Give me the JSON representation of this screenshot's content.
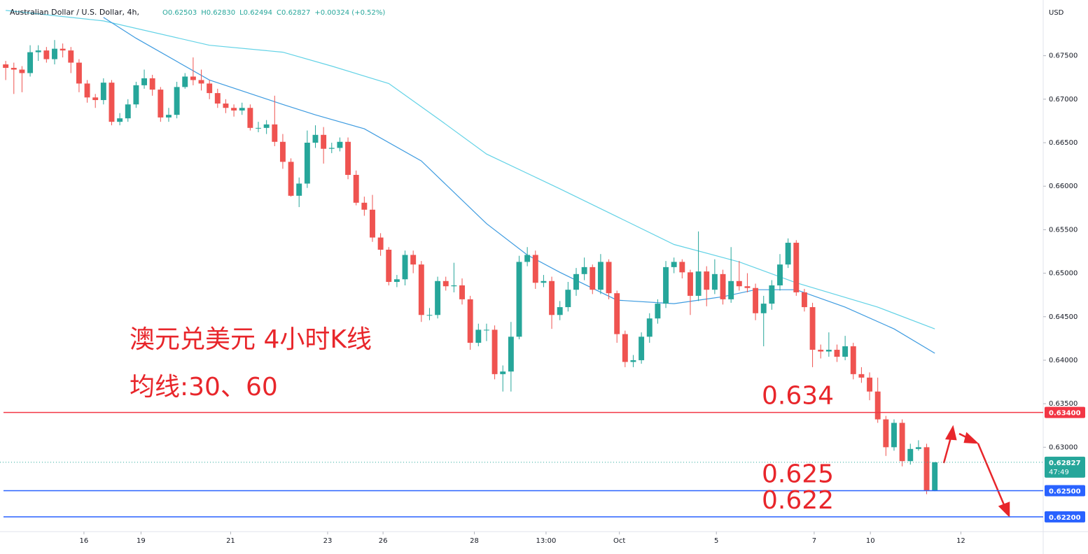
{
  "chart_data": {
    "type": "candlestick",
    "title": "Australian Dollar / U.S. Dollar, 4h,",
    "ohlc": [
      "O0.62503",
      "H0.62830",
      "L0.62494",
      "C0.62827"
    ],
    "change": "+0.00324 (+0.52%)",
    "y_unit": "USD",
    "annotations": [
      "澳元兑美元 4小时K线",
      "均线:30、60"
    ],
    "up_color": "#26a69a",
    "down_color": "#ef5350",
    "open": [
      0.674,
      0.6736,
      0.6734,
      0.673,
      0.6754,
      0.6756,
      0.6746,
      0.6758,
      0.6756,
      0.6742,
      0.6718,
      0.6702,
      0.6699,
      0.6719,
      0.6674,
      0.6678,
      0.6694,
      0.6716,
      0.6724,
      0.6711,
      0.6679,
      0.6682,
      0.6714,
      0.6726,
      0.6722,
      0.6718,
      0.6707,
      0.6695,
      0.669,
      0.6687,
      0.669,
      0.6667,
      0.6667,
      0.6671,
      0.6651,
      0.6628,
      0.6589,
      0.6603,
      0.665,
      0.6659,
      0.6643,
      0.6644,
      0.6651,
      0.6613,
      0.6581,
      0.6573,
      0.6541,
      0.6527,
      0.649,
      0.6493,
      0.6521,
      0.651,
      0.6452,
      0.6452,
      0.6491,
      0.6485,
      0.6486,
      0.647,
      0.642,
      0.6435,
      0.6435,
      0.6384,
      0.6387,
      0.6427,
      0.6513,
      0.6521,
      0.6489,
      0.6491,
      0.6452,
      0.6461,
      0.6481,
      0.6499,
      0.6507,
      0.6481,
      0.6513,
      0.6477,
      0.643,
      0.6398,
      0.64,
      0.6427,
      0.6448,
      0.6465,
      0.6507,
      0.6513,
      0.6501,
      0.6474,
      0.6502,
      0.6481,
      0.6499,
      0.647,
      0.6491,
      0.6485,
      0.6483,
      0.6454,
      0.6465,
      0.6486,
      0.651,
      0.6535,
      0.6478,
      0.6461,
      0.6412,
      0.641,
      0.6412,
      0.6404,
      0.6416,
      0.6384,
      0.638,
      0.6364,
      0.6332,
      0.63,
      0.6328,
      0.6284,
      0.6298,
      0.63,
      0.62503
    ],
    "high": [
      0.6744,
      0.6742,
      0.6738,
      0.6762,
      0.6762,
      0.676,
      0.6768,
      0.6764,
      0.676,
      0.6746,
      0.6722,
      0.6706,
      0.6724,
      0.6722,
      0.6684,
      0.67,
      0.672,
      0.6734,
      0.6728,
      0.6714,
      0.669,
      0.672,
      0.673,
      0.6748,
      0.6734,
      0.6722,
      0.6712,
      0.67,
      0.6694,
      0.6696,
      0.6694,
      0.6674,
      0.6676,
      0.6704,
      0.666,
      0.6632,
      0.661,
      0.6664,
      0.667,
      0.6668,
      0.665,
      0.6656,
      0.6656,
      0.6618,
      0.6588,
      0.659,
      0.6546,
      0.653,
      0.6498,
      0.6526,
      0.6526,
      0.6514,
      0.646,
      0.6496,
      0.6496,
      0.6512,
      0.6494,
      0.6474,
      0.6442,
      0.6442,
      0.644,
      0.6394,
      0.6444,
      0.652,
      0.653,
      0.6526,
      0.6498,
      0.6496,
      0.6468,
      0.649,
      0.6506,
      0.6518,
      0.651,
      0.6522,
      0.6516,
      0.648,
      0.6434,
      0.6406,
      0.6432,
      0.6454,
      0.647,
      0.6514,
      0.6518,
      0.6516,
      0.6504,
      0.6548,
      0.6508,
      0.6516,
      0.6504,
      0.653,
      0.6514,
      0.65,
      0.6488,
      0.6474,
      0.6492,
      0.6522,
      0.654,
      0.6538,
      0.6482,
      0.6466,
      0.6418,
      0.6432,
      0.6418,
      0.6428,
      0.642,
      0.6392,
      0.6386,
      0.638,
      0.6336,
      0.6332,
      0.6332,
      0.6304,
      0.6308,
      0.6304,
      0.6283
    ],
    "low": [
      0.6722,
      0.6706,
      0.6708,
      0.6726,
      0.6744,
      0.6742,
      0.674,
      0.6748,
      0.673,
      0.6708,
      0.6696,
      0.669,
      0.6694,
      0.667,
      0.667,
      0.6674,
      0.669,
      0.6712,
      0.6704,
      0.6674,
      0.6674,
      0.6678,
      0.6712,
      0.6716,
      0.671,
      0.67,
      0.669,
      0.6684,
      0.668,
      0.6682,
      0.6664,
      0.6662,
      0.666,
      0.6646,
      0.662,
      0.6588,
      0.6576,
      0.6598,
      0.6644,
      0.6626,
      0.6638,
      0.664,
      0.6608,
      0.6578,
      0.6566,
      0.6536,
      0.652,
      0.6486,
      0.6484,
      0.6486,
      0.65,
      0.6444,
      0.6446,
      0.6448,
      0.648,
      0.6478,
      0.6464,
      0.6412,
      0.6416,
      0.6422,
      0.6378,
      0.6364,
      0.6364,
      0.6424,
      0.6508,
      0.6482,
      0.6484,
      0.6436,
      0.6446,
      0.6456,
      0.6474,
      0.6492,
      0.6476,
      0.6476,
      0.647,
      0.642,
      0.6392,
      0.6392,
      0.6396,
      0.642,
      0.6442,
      0.646,
      0.65,
      0.6494,
      0.6452,
      0.6468,
      0.6462,
      0.6476,
      0.6464,
      0.6466,
      0.648,
      0.6478,
      0.6446,
      0.6416,
      0.6458,
      0.648,
      0.6506,
      0.6474,
      0.6456,
      0.6392,
      0.6402,
      0.6404,
      0.6398,
      0.64,
      0.6378,
      0.6374,
      0.6354,
      0.6328,
      0.629,
      0.6296,
      0.6278,
      0.628,
      0.6296,
      0.6246,
      0.62494
    ],
    "close": [
      0.6736,
      0.6734,
      0.673,
      0.6754,
      0.6756,
      0.6746,
      0.6758,
      0.6756,
      0.6742,
      0.6718,
      0.6702,
      0.6699,
      0.6719,
      0.6674,
      0.6678,
      0.6694,
      0.6716,
      0.6724,
      0.6711,
      0.6679,
      0.6682,
      0.6714,
      0.6726,
      0.6722,
      0.6718,
      0.6707,
      0.6695,
      0.669,
      0.6687,
      0.669,
      0.6667,
      0.6667,
      0.6671,
      0.6651,
      0.6628,
      0.6589,
      0.6603,
      0.665,
      0.6659,
      0.6643,
      0.6644,
      0.6651,
      0.6613,
      0.6581,
      0.6573,
      0.6541,
      0.6527,
      0.649,
      0.6493,
      0.6521,
      0.651,
      0.6452,
      0.6452,
      0.6491,
      0.6485,
      0.6486,
      0.647,
      0.642,
      0.6435,
      0.6435,
      0.6384,
      0.6387,
      0.6427,
      0.6513,
      0.6521,
      0.6489,
      0.6491,
      0.6452,
      0.6461,
      0.6481,
      0.6499,
      0.6507,
      0.6481,
      0.6513,
      0.6477,
      0.643,
      0.6398,
      0.64,
      0.6427,
      0.6448,
      0.6465,
      0.6507,
      0.6513,
      0.6501,
      0.6474,
      0.6502,
      0.6481,
      0.6499,
      0.647,
      0.6491,
      0.6485,
      0.6483,
      0.6454,
      0.6465,
      0.6486,
      0.651,
      0.6535,
      0.6478,
      0.6461,
      0.6412,
      0.641,
      0.6412,
      0.6404,
      0.6416,
      0.6384,
      0.638,
      0.6364,
      0.6332,
      0.63,
      0.6328,
      0.6284,
      0.6298,
      0.63,
      0.625,
      0.62827
    ],
    "series": [
      {
        "color": "#62d2e6",
        "x": [
          0,
          12,
          25,
          34,
          40,
          47,
          53,
          59,
          68,
          75,
          82,
          90,
          97,
          107,
          114
        ],
        "values": [
          0.6802,
          0.679,
          0.6762,
          0.6754,
          0.6738,
          0.6718,
          0.6678,
          0.6637,
          0.6597,
          0.6565,
          0.6533,
          0.6513,
          0.6489,
          0.6461,
          0.6436
        ]
      },
      {
        "color": "#3d9be0",
        "x": [
          12,
          16,
          25,
          34,
          38,
          44,
          51,
          59,
          64,
          68,
          75,
          82,
          88,
          92,
          97,
          103,
          109,
          114
        ],
        "values": [
          0.6794,
          0.677,
          0.6722,
          0.6694,
          0.6682,
          0.6666,
          0.6629,
          0.6557,
          0.6521,
          0.6501,
          0.6469,
          0.6465,
          0.6473,
          0.6481,
          0.6481,
          0.6461,
          0.6436,
          0.6408
        ]
      }
    ],
    "levels": [
      {
        "value": 0.634,
        "label": "0.63400",
        "color": "#f23645"
      },
      {
        "value": 0.625,
        "label": "0.62500",
        "color": "#2962ff"
      },
      {
        "value": 0.622,
        "label": "0.62200",
        "color": "#2962ff"
      }
    ],
    "current_price": 0.62827,
    "countdown": "47:49",
    "xlim": [
      -0.7,
      127.3
    ],
    "ylim": [
      0.6203,
      0.6814
    ],
    "xticks": [
      {
        "value": 9.6,
        "label": "16"
      },
      {
        "value": 16.6,
        "label": "19"
      },
      {
        "value": 27.6,
        "label": "21"
      },
      {
        "value": 39.5,
        "label": "23"
      },
      {
        "value": 46.3,
        "label": "26"
      },
      {
        "value": 57.5,
        "label": "28"
      },
      {
        "value": 66.3,
        "label": "13:00"
      },
      {
        "value": 75.3,
        "label": "Oct"
      },
      {
        "value": 87.2,
        "label": "5"
      },
      {
        "value": 99.2,
        "label": "7"
      },
      {
        "value": 106.1,
        "label": "10"
      },
      {
        "value": 117.2,
        "label": "12"
      }
    ],
    "yticks": [
      {
        "value": 0.63,
        "label": "0.63000"
      },
      {
        "value": 0.635,
        "label": "0.63500"
      },
      {
        "value": 0.64,
        "label": "0.64000"
      },
      {
        "value": 0.645,
        "label": "0.64500"
      },
      {
        "value": 0.65,
        "label": "0.65000"
      },
      {
        "value": 0.655,
        "label": "0.65500"
      },
      {
        "value": 0.66,
        "label": "0.66000"
      },
      {
        "value": 0.665,
        "label": "0.66500"
      },
      {
        "value": 0.67,
        "label": "0.67000"
      },
      {
        "value": 0.675,
        "label": "0.67500"
      }
    ]
  }
}
